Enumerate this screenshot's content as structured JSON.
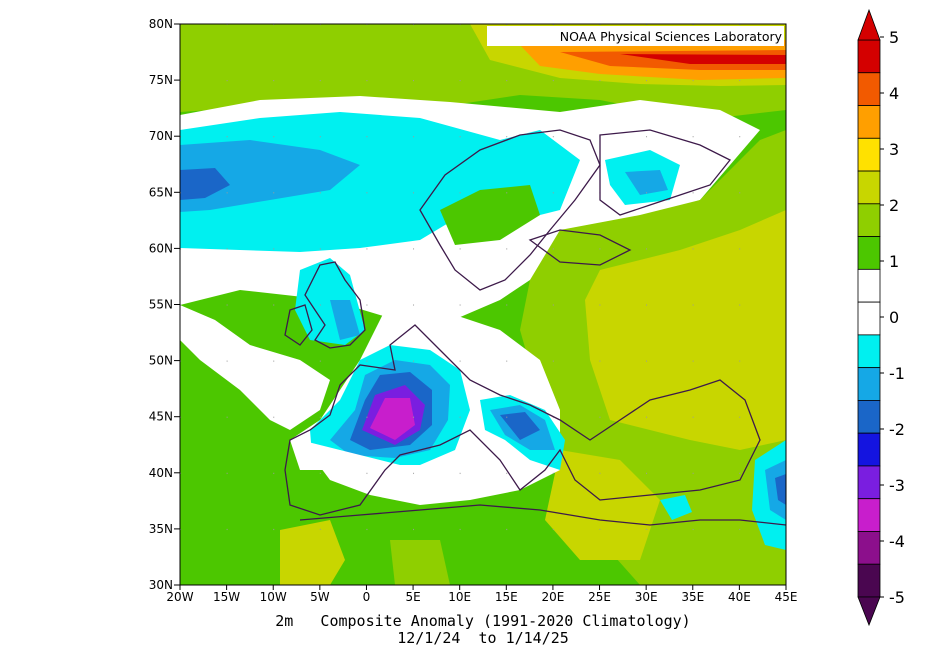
{
  "credit": "NOAA Physical Sciences Laboratory",
  "caption": {
    "line1": "2m   Composite Anomaly (1991-2020 Climatology)",
    "line2": "12/1/24  to 1/14/25"
  },
  "map": {
    "lon_range": [
      -20,
      45
    ],
    "lat_range": [
      30,
      80
    ],
    "lon_ticks": [
      "20W",
      "15W",
      "10W",
      "5W",
      "0",
      "5E",
      "10E",
      "15E",
      "20E",
      "25E",
      "30E",
      "35E",
      "40E",
      "45E"
    ],
    "lat_ticks": [
      "80N",
      "75N",
      "70N",
      "65N",
      "60N",
      "55N",
      "50N",
      "45N",
      "40N",
      "35N",
      "30N"
    ]
  },
  "colorbar": {
    "labels": [
      "5",
      "4",
      "3",
      "2",
      "1",
      "0",
      "-1",
      "-2",
      "-3",
      "-4",
      "-5"
    ],
    "colors": [
      "#d40000",
      "#f25a00",
      "#ff9f00",
      "#ffe100",
      "#c8d600",
      "#8fcf00",
      "#4cc700",
      "#ffffff",
      "#ffffff",
      "#00f0f0",
      "#15a8e6",
      "#1a66c8",
      "#1414e0",
      "#7a1ee0",
      "#c81ecc",
      "#8c0f8c",
      "#4a0650"
    ],
    "colorbar_colors_ordered_top_to_bottom": "dark red, red-orange, orange, yellow, yellow-green, green, bright green, white, white, cyan, sky blue, blue, deep blue, violet, magenta, purple, dark purple"
  }
}
